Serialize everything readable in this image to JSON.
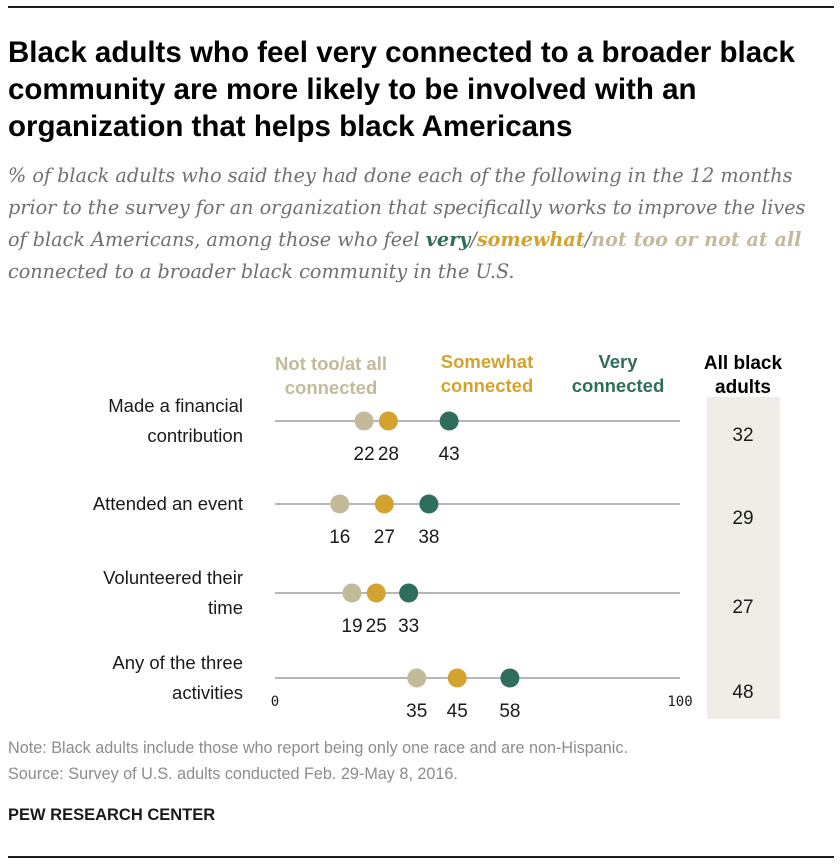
{
  "title": "Black adults who feel very connected to a broader black community are more likely to be involved with an organization that helps black Americans",
  "subtitle": {
    "intro": "% of black adults who said they had done each of the following in the 12 months prior to the survey for an organization that specifically works to improve the lives of black Americans, among those who feel ",
    "very": "very",
    "sep1": "/",
    "somewhat": "somewhat",
    "sep2": "/",
    "nottoo": "not too or not at all",
    "outro": " connected to a broader black community in the U.S."
  },
  "note": "Note: Black adults include those who report being only one race and are non-Hispanic.",
  "source": "Source: Survey of U.S. adults conducted Feb. 29-May 8, 2016.",
  "org": "PEW RESEARCH CENTER",
  "colors": {
    "very": "#2f6e5c",
    "somewhat": "#d4a22f",
    "nottoo": "#c2ba98",
    "axis": "#8a8a8a",
    "total_band": "#efede6"
  },
  "chart_data": {
    "type": "scatter",
    "xlim": [
      0,
      100
    ],
    "tick_labels": [
      "0",
      "100"
    ],
    "categories": [
      [
        "Made a financial",
        "contribution"
      ],
      [
        "Attended an event"
      ],
      [
        "Volunteered their",
        "time"
      ],
      [
        "Any of the three",
        "activities"
      ]
    ],
    "series": [
      {
        "key": "nottoo",
        "name": [
          "Not too/at all",
          "connected"
        ],
        "values": [
          22,
          16,
          19,
          35
        ]
      },
      {
        "key": "somewhat",
        "name": [
          "Somewhat",
          "connected"
        ],
        "values": [
          28,
          27,
          25,
          45
        ]
      },
      {
        "key": "very",
        "name": [
          "Very",
          "connected"
        ],
        "values": [
          43,
          38,
          33,
          58
        ]
      }
    ],
    "total": {
      "name": [
        "All black",
        "adults"
      ],
      "values": [
        32,
        29,
        27,
        48
      ]
    }
  }
}
